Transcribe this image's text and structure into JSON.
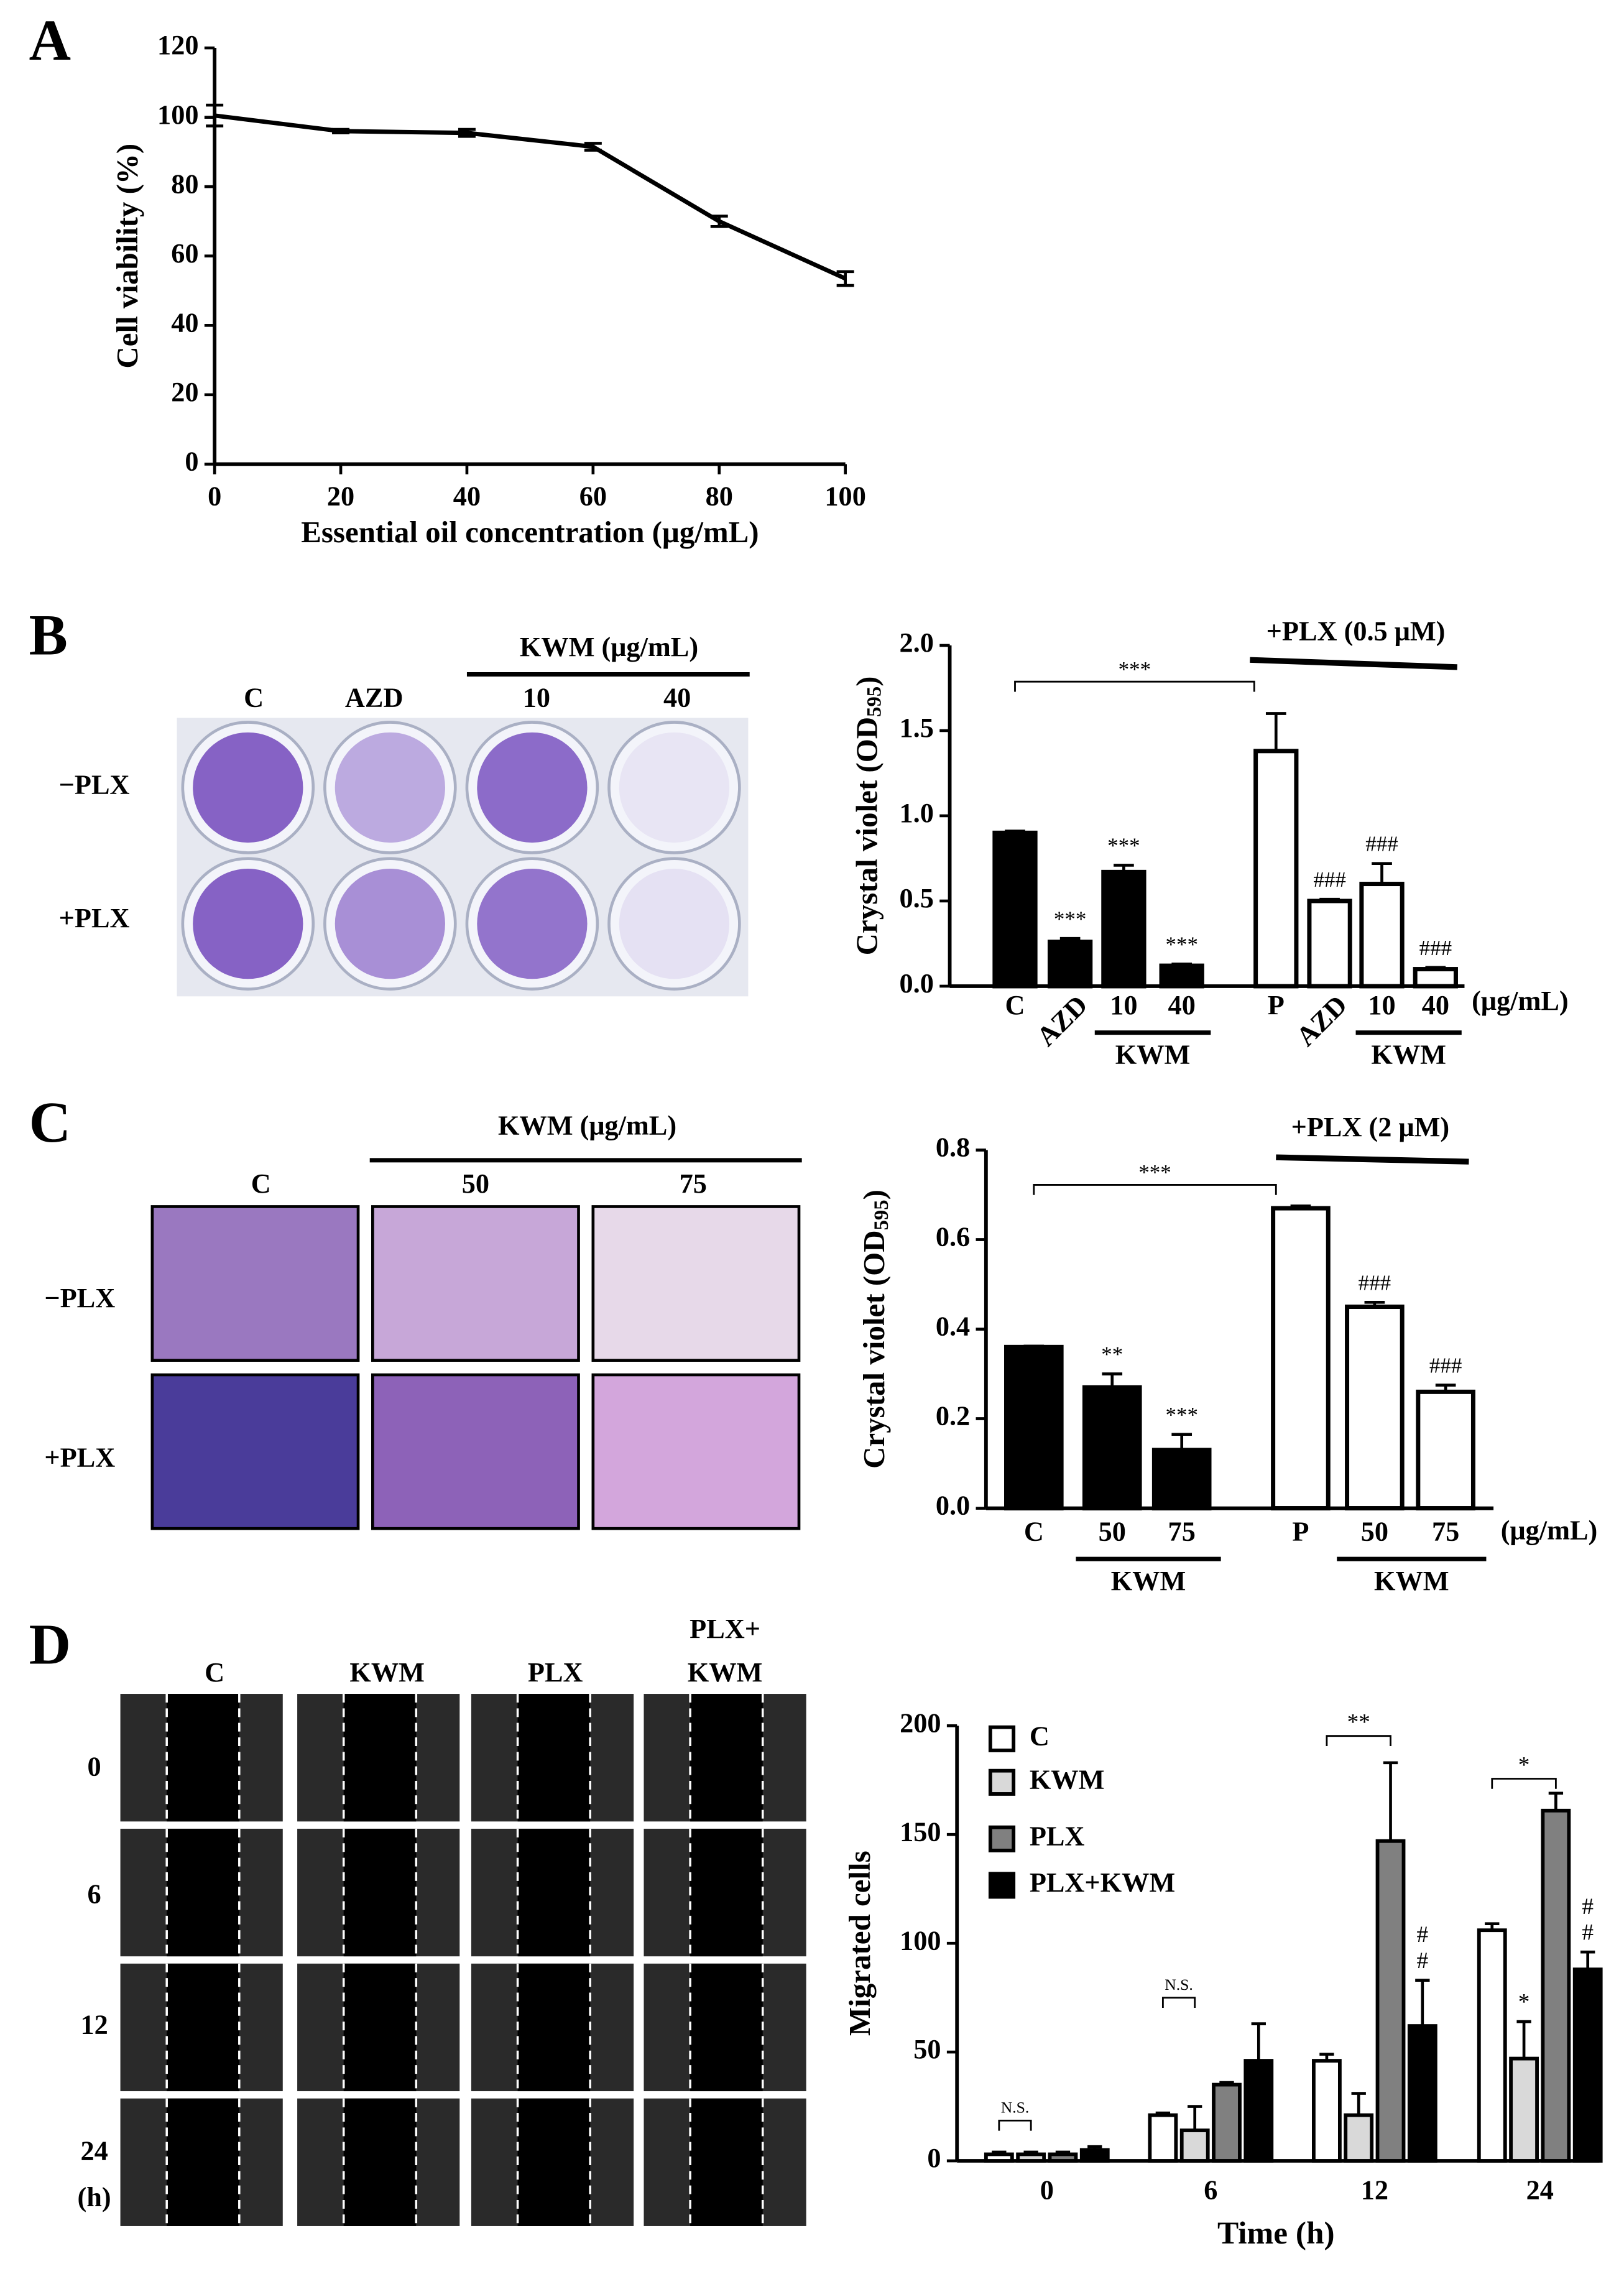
{
  "panel_labels": [
    "A",
    "B",
    "C",
    "D"
  ],
  "photos": {
    "B": {
      "header": "KWM (μg/mL)",
      "columns": [
        "C",
        "AZD",
        "10",
        "40"
      ],
      "rows": [
        "−PLX",
        "+PLX"
      ]
    },
    "C": {
      "header": "KWM (μg/mL)",
      "columns": [
        "C",
        "50",
        "75"
      ],
      "rows": [
        "−PLX",
        "+PLX"
      ]
    },
    "D": {
      "columns": [
        [
          "C"
        ],
        [
          "KWM"
        ],
        [
          "PLX"
        ],
        [
          "PLX+",
          "KWM"
        ]
      ],
      "rows": [
        "0",
        "6",
        "12",
        "24"
      ],
      "rows_unit": "(h)"
    }
  },
  "chart_data": [
    {
      "type": "line",
      "xlabel": "Essential oil concentration (μg/mL)",
      "ylabel": "Cell viability (%)",
      "x": [
        0,
        20,
        40,
        60,
        80,
        100
      ],
      "values": [
        100.5,
        96,
        95.5,
        91.5,
        70,
        53.5
      ],
      "errors": [
        3,
        0.5,
        1,
        1,
        1.5,
        2
      ],
      "color": "#000000",
      "xlim": [
        0,
        100
      ],
      "ylim": [
        0,
        120
      ],
      "xticks": [
        0,
        20,
        40,
        60,
        80,
        100
      ],
      "yticks": [
        0,
        20,
        40,
        60,
        80,
        100,
        120
      ]
    },
    {
      "type": "bar",
      "ylabel": [
        "Crystal violet (OD",
        "595",
        ")"
      ],
      "categories": [
        "C",
        "AZD",
        "10",
        "40",
        "P",
        "AZD",
        "10",
        "40"
      ],
      "values": [
        0.9,
        0.26,
        0.67,
        0.12,
        1.38,
        0.5,
        0.6,
        0.1
      ],
      "errors": [
        0.01,
        0.02,
        0.04,
        0.01,
        0.22,
        0.01,
        0.12,
        0.01
      ],
      "colors": [
        "#000000",
        "#000000",
        "#000000",
        "#000000",
        "#ffffff",
        "#ffffff",
        "#ffffff",
        "#ffffff"
      ],
      "sig": [
        null,
        "***",
        "***",
        "***",
        null,
        "###",
        "###",
        "###"
      ],
      "bracket_label": "***",
      "group_labels": [
        "KWM",
        "KWM"
      ],
      "plx_label": "+PLX (0.5 μM)",
      "unit": "(μg/mL)",
      "ylim": [
        0,
        2
      ],
      "yticks": [
        {
          "value": 0,
          "label": "0.0"
        },
        0.5,
        {
          "value": 1,
          "label": "1.0"
        },
        1.5,
        {
          "value": 2,
          "label": "2.0"
        }
      ]
    },
    {
      "type": "bar",
      "ylabel": [
        "Crystal violet (OD",
        "595",
        ")"
      ],
      "categories": [
        "C",
        "50",
        "75",
        "P",
        "50",
        "75"
      ],
      "values": [
        0.36,
        0.27,
        0.13,
        0.67,
        0.45,
        0.26
      ],
      "errors": [
        0.002,
        0.03,
        0.035,
        0.005,
        0.01,
        0.015
      ],
      "colors": [
        "#000000",
        "#000000",
        "#000000",
        "#ffffff",
        "#ffffff",
        "#ffffff"
      ],
      "sig": [
        null,
        "**",
        "***",
        null,
        "###",
        "###"
      ],
      "bracket_label": "***",
      "group_labels": [
        "KWM",
        "KWM"
      ],
      "plx_label": "+PLX (2 μM)",
      "unit": "(μg/mL)",
      "ylim": [
        0,
        0.8
      ],
      "yticks": [
        {
          "value": 0,
          "label": "0.0"
        },
        0.2,
        0.4,
        0.6,
        0.8
      ]
    },
    {
      "type": "grouped_bar",
      "xlabel": "Time (h)",
      "ylabel": "Migrated cells",
      "categories": [
        "0",
        "6",
        "12",
        "24"
      ],
      "series": [
        {
          "name": "C",
          "color": "#ffffff",
          "values": [
            3,
            21,
            46,
            106
          ],
          "errors": [
            1,
            1,
            3,
            3
          ],
          "sig": [
            null,
            null,
            null,
            null
          ]
        },
        {
          "name": "KWM",
          "color": "#d9d9d9",
          "values": [
            3,
            14,
            21,
            47
          ],
          "errors": [
            1,
            11,
            10,
            17
          ],
          "sig": [
            null,
            null,
            null,
            [
              "*"
            ]
          ]
        },
        {
          "name": "PLX",
          "color": "#808080",
          "values": [
            3,
            35,
            147,
            161
          ],
          "errors": [
            1,
            1,
            36,
            8
          ],
          "sig": [
            null,
            null,
            null,
            null
          ]
        },
        {
          "name": "PLX+KWM",
          "color": "#000000",
          "values": [
            5,
            46,
            62,
            88
          ],
          "errors": [
            1.5,
            17,
            21,
            8
          ],
          "sig": [
            null,
            null,
            [
              "#",
              "#"
            ],
            [
              "#",
              "#"
            ]
          ]
        }
      ],
      "bracket_labels": [
        "N.S.",
        "N.S.",
        "**",
        "*"
      ],
      "legend": "upper left",
      "ylim": [
        0,
        200
      ],
      "yticks": [
        0,
        50,
        100,
        150,
        200
      ]
    }
  ]
}
